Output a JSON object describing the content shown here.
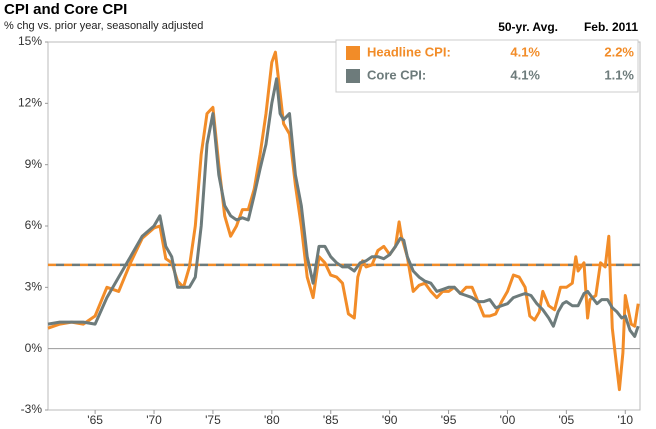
{
  "chart_data": {
    "type": "line",
    "title": "CPI and Core CPI",
    "subtitle": "% chg vs. prior year, seasonally adjusted",
    "legend_headers": [
      "50-yr. Avg.",
      "Feb. 2011"
    ],
    "xlim": [
      1961,
      2011.25
    ],
    "xticks": [
      {
        "value": 1965,
        "label": "'65"
      },
      {
        "value": 1970,
        "label": "'70"
      },
      {
        "value": 1975,
        "label": "'75"
      },
      {
        "value": 1980,
        "label": "'80"
      },
      {
        "value": 1985,
        "label": "'85"
      },
      {
        "value": 1990,
        "label": "'90"
      },
      {
        "value": 1995,
        "label": "'95"
      },
      {
        "value": 2000,
        "label": "'00"
      },
      {
        "value": 2005,
        "label": "'05"
      },
      {
        "value": 2010,
        "label": "'10"
      }
    ],
    "ylim": [
      -3,
      15
    ],
    "yticks": [
      {
        "value": -3,
        "label": "-3%"
      },
      {
        "value": 0,
        "label": "0%"
      },
      {
        "value": 3,
        "label": "3%"
      },
      {
        "value": 6,
        "label": "6%"
      },
      {
        "value": 9,
        "label": "9%"
      },
      {
        "value": 12,
        "label": "12%"
      },
      {
        "value": 15,
        "label": "15%"
      }
    ],
    "series": [
      {
        "name": "Headline CPI:",
        "color": "#f28c28",
        "average": 4.1,
        "average_label": "4.1%",
        "latest_label": "2.2%",
        "x": [
          1961,
          1962,
          1963,
          1964,
          1965,
          1966,
          1967,
          1968,
          1969,
          1970,
          1970.5,
          1971,
          1971.5,
          1972,
          1972.5,
          1973,
          1973.5,
          1974,
          1974.5,
          1975,
          1975.5,
          1976,
          1976.5,
          1977,
          1977.5,
          1978,
          1978.5,
          1979,
          1979.5,
          1980,
          1980.3,
          1980.7,
          1981,
          1981.5,
          1982,
          1982.5,
          1983,
          1983.5,
          1984,
          1984.5,
          1985,
          1985.5,
          1986,
          1986.5,
          1987,
          1987.3,
          1987.7,
          1988,
          1988.5,
          1989,
          1989.5,
          1990,
          1990.5,
          1990.8,
          1991,
          1991.5,
          1992,
          1992.5,
          1993,
          1993.5,
          1994,
          1994.5,
          1995,
          1995.5,
          1996,
          1996.5,
          1997,
          1997.5,
          1998,
          1998.5,
          1999,
          1999.5,
          2000,
          2000.5,
          2001,
          2001.5,
          2001.9,
          2002.3,
          2002.7,
          2003,
          2003.5,
          2004,
          2004.5,
          2005,
          2005.5,
          2005.8,
          2006,
          2006.5,
          2006.8,
          2007,
          2007.5,
          2007.9,
          2008.3,
          2008.6,
          2008.9,
          2009.2,
          2009.5,
          2009.8,
          2010,
          2010.5,
          2010.8,
          2011.1
        ],
        "values": [
          1.0,
          1.2,
          1.3,
          1.2,
          1.6,
          3.0,
          2.8,
          4.2,
          5.4,
          5.9,
          6.0,
          4.4,
          4.2,
          3.3,
          3.0,
          4.0,
          6.0,
          9.5,
          11.5,
          11.8,
          9.0,
          6.5,
          5.5,
          6.0,
          6.8,
          6.8,
          7.8,
          9.5,
          11.5,
          14.0,
          14.5,
          12.5,
          11.0,
          10.5,
          8.0,
          6.0,
          3.5,
          2.5,
          4.5,
          4.2,
          3.6,
          3.5,
          3.2,
          1.7,
          1.5,
          3.5,
          4.3,
          4.0,
          4.1,
          4.8,
          5.0,
          4.6,
          5.0,
          6.2,
          5.5,
          4.5,
          2.8,
          3.1,
          3.2,
          2.8,
          2.5,
          2.8,
          2.8,
          3.0,
          2.7,
          3.0,
          3.0,
          2.3,
          1.6,
          1.6,
          1.7,
          2.3,
          2.8,
          3.6,
          3.5,
          3.0,
          1.6,
          1.4,
          1.8,
          2.8,
          2.1,
          1.9,
          3.0,
          3.0,
          3.2,
          4.5,
          3.8,
          4.2,
          1.5,
          2.4,
          2.6,
          4.2,
          4.0,
          5.5,
          1.0,
          -0.5,
          -2.0,
          -0.2,
          2.6,
          1.2,
          1.1,
          2.2
        ]
      },
      {
        "name": "Core CPI:",
        "color": "#6d7b7b",
        "average": 4.1,
        "average_label": "4.1%",
        "latest_label": "1.1%",
        "x": [
          1961,
          1962,
          1963,
          1964,
          1965,
          1966,
          1967,
          1968,
          1969,
          1970,
          1970.5,
          1971,
          1971.5,
          1972,
          1972.5,
          1973,
          1973.5,
          1974,
          1974.5,
          1975,
          1975.5,
          1976,
          1976.5,
          1977,
          1977.5,
          1978,
          1978.5,
          1979,
          1979.5,
          1980,
          1980.4,
          1980.7,
          1981,
          1981.5,
          1982,
          1982.5,
          1983,
          1983.5,
          1984,
          1984.5,
          1985,
          1985.5,
          1986,
          1986.5,
          1987,
          1987.5,
          1988,
          1988.5,
          1989,
          1989.5,
          1990,
          1990.5,
          1990.9,
          1991.2,
          1991.5,
          1992,
          1992.5,
          1993,
          1993.5,
          1994,
          1994.5,
          1995,
          1995.5,
          1996,
          1996.5,
          1997,
          1997.5,
          1998,
          1998.5,
          1999,
          1999.5,
          2000,
          2000.5,
          2001,
          2001.5,
          2002,
          2002.5,
          2003,
          2003.5,
          2003.9,
          2004.3,
          2004.7,
          2005,
          2005.5,
          2006,
          2006.5,
          2006.8,
          2007.2,
          2007.6,
          2008,
          2008.5,
          2008.9,
          2009.3,
          2009.7,
          2010,
          2010.4,
          2010.8,
          2011.1
        ],
        "values": [
          1.2,
          1.3,
          1.3,
          1.3,
          1.2,
          2.5,
          3.5,
          4.5,
          5.5,
          6.0,
          6.5,
          5.0,
          4.5,
          3.0,
          3.0,
          3.0,
          3.5,
          6.0,
          10.0,
          11.5,
          8.5,
          7.0,
          6.5,
          6.3,
          6.4,
          6.3,
          7.5,
          8.8,
          10.0,
          12.0,
          13.2,
          11.5,
          11.2,
          11.5,
          8.5,
          7.0,
          4.5,
          3.2,
          5.0,
          5.0,
          4.5,
          4.2,
          4.0,
          4.0,
          3.8,
          4.2,
          4.3,
          4.5,
          4.5,
          4.4,
          4.6,
          5.0,
          5.4,
          5.3,
          4.5,
          3.8,
          3.5,
          3.3,
          3.2,
          2.8,
          2.9,
          3.0,
          3.0,
          2.7,
          2.6,
          2.5,
          2.3,
          2.3,
          2.4,
          2.0,
          2.1,
          2.2,
          2.5,
          2.6,
          2.7,
          2.6,
          2.2,
          1.9,
          1.5,
          1.1,
          1.8,
          2.2,
          2.3,
          2.1,
          2.1,
          2.7,
          2.8,
          2.5,
          2.2,
          2.4,
          2.4,
          2.0,
          1.8,
          1.5,
          1.6,
          0.9,
          0.6,
          1.1
        ]
      }
    ]
  }
}
